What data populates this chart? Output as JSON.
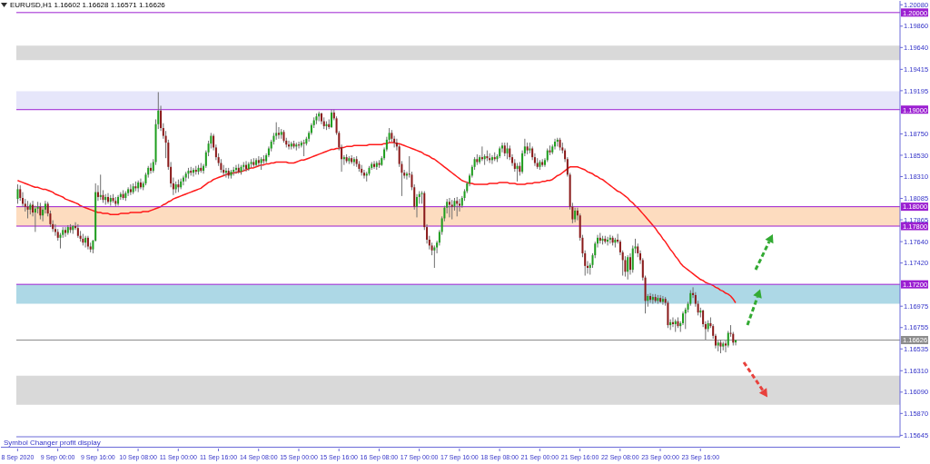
{
  "chart_data": {
    "type": "candlestick",
    "title": "EURUSD,H1 1.16602 1.16628 1.16571 1.16626",
    "annotations": [
      "Symbol Changer profit display"
    ],
    "categories": [
      "8 Sep 2020",
      null,
      null,
      null,
      null,
      null,
      null,
      null,
      null,
      null,
      null,
      null,
      null,
      null,
      null,
      null,
      "9 Sep 00:00",
      null,
      null,
      null,
      null,
      null,
      null,
      null,
      null,
      null,
      null,
      null,
      null,
      null,
      null,
      null,
      "9 Sep 16:00",
      null,
      null,
      null,
      null,
      null,
      null,
      null,
      null,
      null,
      null,
      null,
      null,
      null,
      null,
      null,
      "10 Sep 08:00",
      null,
      null,
      null,
      null,
      null,
      null,
      null,
      null,
      null,
      null,
      null,
      null,
      null,
      null,
      null,
      "11 Sep 00:00",
      null,
      null,
      null,
      null,
      null,
      null,
      null,
      null,
      null,
      null,
      null,
      null,
      null,
      null,
      null,
      "11 Sep 16:00",
      null,
      null,
      null,
      null,
      null,
      null,
      null,
      null,
      null,
      null,
      null,
      null,
      null,
      null,
      null,
      "14 Sep 08:00",
      null,
      null,
      null,
      null,
      null,
      null,
      null,
      null,
      null,
      null,
      null,
      null,
      null,
      null,
      null,
      "15 Sep 00:00",
      null,
      null,
      null,
      null,
      null,
      null,
      null,
      null,
      null,
      null,
      null,
      null,
      null,
      null,
      null,
      "15 Sep 16:00",
      null,
      null,
      null,
      null,
      null,
      null,
      null,
      null,
      null,
      null,
      null,
      null,
      null,
      null,
      null,
      "16 Sep 08:00",
      null,
      null,
      null,
      null,
      null,
      null,
      null,
      null,
      null,
      null,
      null,
      null,
      null,
      null,
      null,
      "17 Sep 00:00",
      null,
      null,
      null,
      null,
      null,
      null,
      null,
      null,
      null,
      null,
      null,
      null,
      null,
      null,
      null,
      "17 Sep 16:00",
      null,
      null,
      null,
      null,
      null,
      null,
      null,
      null,
      null,
      null,
      null,
      null,
      null,
      null,
      null,
      "18 Sep 08:00",
      null,
      null,
      null,
      null,
      null,
      null,
      null,
      null,
      null,
      null,
      null,
      null,
      null,
      null,
      null,
      "21 Sep 00:00",
      null,
      null,
      null,
      null,
      null,
      null,
      null,
      null,
      null,
      null,
      null,
      null,
      null,
      null,
      null,
      "21 Sep 16:00",
      null,
      null,
      null,
      null,
      null,
      null,
      null,
      null,
      null,
      null,
      null,
      null,
      null,
      null,
      null,
      "22 Sep 08:00",
      null,
      null,
      null,
      null,
      null,
      null,
      null,
      null,
      null,
      null,
      null,
      null,
      null,
      null,
      null,
      "23 Sep 00:00",
      null,
      null,
      null,
      null,
      null,
      null,
      null,
      null,
      null,
      null,
      null,
      null,
      null,
      null,
      null,
      "23 Sep 16:00",
      null,
      null,
      null,
      null,
      null,
      null,
      null,
      null,
      null,
      null,
      null,
      null,
      null,
      null,
      null,
      null,
      null,
      null,
      null,
      null,
      null,
      null,
      null,
      null,
      null,
      null,
      null,
      null,
      null,
      null,
      null,
      null,
      null,
      null,
      null,
      null,
      null,
      null,
      null,
      null,
      null,
      null,
      null,
      null,
      null,
      null,
      null,
      null,
      null,
      null,
      null,
      null,
      null,
      null,
      null,
      null,
      null,
      null,
      null,
      null,
      null,
      null,
      null,
      null,
      null,
      null,
      null,
      null,
      null,
      null,
      null,
      null,
      null,
      null,
      null,
      null,
      null,
      null,
      null
    ],
    "ohlc": [
      [
        1.1808,
        1.1823,
        1.1803,
        1.1818
      ],
      [
        1.1818,
        1.1822,
        1.1806,
        1.1809
      ],
      [
        1.1809,
        1.1815,
        1.18,
        1.1803
      ],
      [
        1.1803,
        1.1808,
        1.1795,
        1.18
      ],
      [
        1.18,
        1.1806,
        1.1788,
        1.1797
      ],
      [
        1.1797,
        1.1804,
        1.1792,
        1.1802
      ],
      [
        1.1802,
        1.1806,
        1.179,
        1.1794
      ],
      [
        1.1794,
        1.1801,
        1.1774,
        1.1798
      ],
      [
        1.1798,
        1.1805,
        1.1793,
        1.18
      ],
      [
        1.18,
        1.1804,
        1.1787,
        1.1791
      ],
      [
        1.1791,
        1.18,
        1.1785,
        1.1797
      ],
      [
        1.1797,
        1.1806,
        1.1793,
        1.1803
      ],
      [
        1.1803,
        1.1805,
        1.179,
        1.1793
      ],
      [
        1.1793,
        1.1796,
        1.1779,
        1.1782
      ],
      [
        1.1782,
        1.1786,
        1.1774,
        1.1777
      ],
      [
        1.1777,
        1.1782,
        1.177,
        1.1774
      ],
      [
        1.1774,
        1.1777,
        1.1765,
        1.1768
      ],
      [
        1.1768,
        1.1773,
        1.1757,
        1.1771
      ],
      [
        1.1771,
        1.1779,
        1.1768,
        1.1776
      ],
      [
        1.1776,
        1.1779,
        1.1769,
        1.1773
      ],
      [
        1.1773,
        1.1781,
        1.1771,
        1.1779
      ],
      [
        1.1779,
        1.1782,
        1.1773,
        1.1776
      ],
      [
        1.1776,
        1.1781,
        1.1772,
        1.178
      ],
      [
        1.178,
        1.1784,
        1.1776,
        1.1778
      ],
      [
        1.1778,
        1.1782,
        1.1768,
        1.177
      ],
      [
        1.177,
        1.1775,
        1.1764,
        1.1767
      ],
      [
        1.1767,
        1.1772,
        1.176,
        1.1763
      ],
      [
        1.1763,
        1.177,
        1.1758,
        1.1768
      ],
      [
        1.1768,
        1.177,
        1.1756,
        1.1759
      ],
      [
        1.1759,
        1.1763,
        1.1753,
        1.1756
      ],
      [
        1.1756,
        1.1766,
        1.1752,
        1.1765
      ],
      [
        1.1765,
        1.1824,
        1.1764,
        1.1815
      ],
      [
        1.1815,
        1.1822,
        1.1806,
        1.181
      ],
      [
        1.181,
        1.1833,
        1.1807,
        1.1812
      ],
      [
        1.1812,
        1.1817,
        1.1804,
        1.1807
      ],
      [
        1.1807,
        1.1813,
        1.1802,
        1.181
      ],
      [
        1.181,
        1.1814,
        1.1803,
        1.1805
      ],
      [
        1.1805,
        1.1812,
        1.1801,
        1.1809
      ],
      [
        1.1809,
        1.1813,
        1.1804,
        1.1806
      ],
      [
        1.1806,
        1.181,
        1.18,
        1.1803
      ],
      [
        1.1803,
        1.1812,
        1.1801,
        1.181
      ],
      [
        1.181,
        1.1815,
        1.1807,
        1.1813
      ],
      [
        1.1813,
        1.1817,
        1.1807,
        1.1809
      ],
      [
        1.1809,
        1.1816,
        1.1806,
        1.1814
      ],
      [
        1.1814,
        1.182,
        1.1811,
        1.1818
      ],
      [
        1.1818,
        1.1823,
        1.1812,
        1.1815
      ],
      [
        1.1815,
        1.1824,
        1.1813,
        1.1821
      ],
      [
        1.1821,
        1.1826,
        1.1816,
        1.1819
      ],
      [
        1.1819,
        1.1827,
        1.1815,
        1.1825
      ],
      [
        1.1825,
        1.1829,
        1.1818,
        1.182
      ],
      [
        1.182,
        1.1826,
        1.1817,
        1.1824
      ],
      [
        1.1824,
        1.1835,
        1.1822,
        1.1833
      ],
      [
        1.1833,
        1.1842,
        1.183,
        1.184
      ],
      [
        1.184,
        1.1845,
        1.1834,
        1.1837
      ],
      [
        1.1837,
        1.1849,
        1.1835,
        1.1846
      ],
      [
        1.1846,
        1.189,
        1.1843,
        1.1885
      ],
      [
        1.1885,
        1.1918,
        1.188,
        1.1899
      ],
      [
        1.1899,
        1.1904,
        1.1878,
        1.1881
      ],
      [
        1.1881,
        1.1886,
        1.187,
        1.1873
      ],
      [
        1.1873,
        1.1878,
        1.185,
        1.1866
      ],
      [
        1.1866,
        1.1869,
        1.1838,
        1.1841
      ],
      [
        1.1841,
        1.1846,
        1.182,
        1.1824
      ],
      [
        1.1824,
        1.183,
        1.1812,
        1.1818
      ],
      [
        1.1818,
        1.1826,
        1.1814,
        1.1823
      ],
      [
        1.1823,
        1.1828,
        1.1815,
        1.182
      ],
      [
        1.182,
        1.1829,
        1.1818,
        1.1826
      ],
      [
        1.1826,
        1.1832,
        1.1822,
        1.183
      ],
      [
        1.183,
        1.1836,
        1.1826,
        1.1834
      ],
      [
        1.1834,
        1.184,
        1.1829,
        1.1837
      ],
      [
        1.1837,
        1.1841,
        1.1832,
        1.1835
      ],
      [
        1.1835,
        1.184,
        1.1831,
        1.1838
      ],
      [
        1.1838,
        1.1842,
        1.1833,
        1.1836
      ],
      [
        1.1836,
        1.1843,
        1.1833,
        1.184
      ],
      [
        1.184,
        1.1845,
        1.1835,
        1.1837
      ],
      [
        1.1837,
        1.1844,
        1.1834,
        1.1842
      ],
      [
        1.1842,
        1.1858,
        1.184,
        1.1856
      ],
      [
        1.1856,
        1.1868,
        1.1852,
        1.1865
      ],
      [
        1.1865,
        1.1876,
        1.186,
        1.1873
      ],
      [
        1.1873,
        1.1875,
        1.1858,
        1.1861
      ],
      [
        1.1861,
        1.1864,
        1.1848,
        1.1851
      ],
      [
        1.1851,
        1.1855,
        1.1842,
        1.1845
      ],
      [
        1.1845,
        1.1849,
        1.1835,
        1.1838
      ],
      [
        1.1838,
        1.1843,
        1.1832,
        1.1835
      ],
      [
        1.1835,
        1.184,
        1.183,
        1.1837
      ],
      [
        1.1837,
        1.184,
        1.1829,
        1.1832
      ],
      [
        1.1832,
        1.1838,
        1.1829,
        1.1836
      ],
      [
        1.1836,
        1.1841,
        1.1832,
        1.1838
      ],
      [
        1.1838,
        1.1843,
        1.1834,
        1.184
      ],
      [
        1.184,
        1.1844,
        1.1834,
        1.1836
      ],
      [
        1.1836,
        1.1843,
        1.1833,
        1.1841
      ],
      [
        1.1841,
        1.1846,
        1.1837,
        1.1843
      ],
      [
        1.1843,
        1.1847,
        1.1836,
        1.1839
      ],
      [
        1.1839,
        1.1846,
        1.1837,
        1.1844
      ],
      [
        1.1844,
        1.1849,
        1.184,
        1.1846
      ],
      [
        1.1846,
        1.185,
        1.1841,
        1.1843
      ],
      [
        1.1843,
        1.185,
        1.1841,
        1.1848
      ],
      [
        1.1848,
        1.1852,
        1.1842,
        1.1845
      ],
      [
        1.1845,
        1.1851,
        1.1838,
        1.1849
      ],
      [
        1.1849,
        1.1853,
        1.1844,
        1.1847
      ],
      [
        1.1847,
        1.1855,
        1.1845,
        1.1853
      ],
      [
        1.1853,
        1.1862,
        1.1851,
        1.186
      ],
      [
        1.186,
        1.1869,
        1.1857,
        1.1867
      ],
      [
        1.1867,
        1.1876,
        1.1864,
        1.1873
      ],
      [
        1.1873,
        1.1887,
        1.1869,
        1.1876
      ],
      [
        1.1876,
        1.1882,
        1.187,
        1.1874
      ],
      [
        1.1874,
        1.188,
        1.187,
        1.1877
      ],
      [
        1.1877,
        1.1879,
        1.1866,
        1.1868
      ],
      [
        1.1868,
        1.1871,
        1.1861,
        1.1864
      ],
      [
        1.1864,
        1.1868,
        1.1859,
        1.1862
      ],
      [
        1.1862,
        1.1867,
        1.1859,
        1.1865
      ],
      [
        1.1865,
        1.1868,
        1.186,
        1.1862
      ],
      [
        1.1862,
        1.1866,
        1.1858,
        1.1864
      ],
      [
        1.1864,
        1.1867,
        1.186,
        1.1863
      ],
      [
        1.1863,
        1.1868,
        1.1861,
        1.1866
      ],
      [
        1.1866,
        1.1869,
        1.1852,
        1.1865
      ],
      [
        1.1865,
        1.1872,
        1.1863,
        1.187
      ],
      [
        1.187,
        1.1878,
        1.1867,
        1.1876
      ],
      [
        1.1876,
        1.1886,
        1.1874,
        1.1884
      ],
      [
        1.1884,
        1.1892,
        1.1881,
        1.1889
      ],
      [
        1.1889,
        1.1896,
        1.1885,
        1.1893
      ],
      [
        1.1893,
        1.1898,
        1.1888,
        1.1896
      ],
      [
        1.1896,
        1.1897,
        1.1885,
        1.1888
      ],
      [
        1.1888,
        1.1892,
        1.188,
        1.1883
      ],
      [
        1.1883,
        1.1888,
        1.1879,
        1.1885
      ],
      [
        1.1885,
        1.189,
        1.188,
        1.1882
      ],
      [
        1.1882,
        1.19,
        1.1881,
        1.1897
      ],
      [
        1.1897,
        1.19,
        1.1889,
        1.1891
      ],
      [
        1.1891,
        1.1893,
        1.1874,
        1.1876
      ],
      [
        1.1876,
        1.1878,
        1.1858,
        1.1861
      ],
      [
        1.1861,
        1.1864,
        1.1836,
        1.1849
      ],
      [
        1.1849,
        1.1853,
        1.1843,
        1.1851
      ],
      [
        1.1851,
        1.1854,
        1.1845,
        1.1847
      ],
      [
        1.1847,
        1.1852,
        1.1844,
        1.185
      ],
      [
        1.185,
        1.1853,
        1.1844,
        1.1846
      ],
      [
        1.1846,
        1.1851,
        1.1842,
        1.1849
      ],
      [
        1.1849,
        1.1852,
        1.1841,
        1.1844
      ],
      [
        1.1844,
        1.1847,
        1.1836,
        1.1839
      ],
      [
        1.1839,
        1.1843,
        1.1832,
        1.1835
      ],
      [
        1.1835,
        1.1838,
        1.1829,
        1.1832
      ],
      [
        1.1832,
        1.1836,
        1.1826,
        1.1834
      ],
      [
        1.1834,
        1.1842,
        1.1832,
        1.184
      ],
      [
        1.184,
        1.1846,
        1.1838,
        1.1844
      ],
      [
        1.1844,
        1.1847,
        1.1839,
        1.1841
      ],
      [
        1.1841,
        1.1847,
        1.1838,
        1.1845
      ],
      [
        1.1845,
        1.1848,
        1.184,
        1.1843
      ],
      [
        1.1843,
        1.1852,
        1.1842,
        1.185
      ],
      [
        1.185,
        1.1861,
        1.1848,
        1.1859
      ],
      [
        1.1859,
        1.1872,
        1.1857,
        1.1869
      ],
      [
        1.1869,
        1.1881,
        1.1866,
        1.1876
      ],
      [
        1.1876,
        1.1879,
        1.1867,
        1.187
      ],
      [
        1.187,
        1.1873,
        1.1861,
        1.1866
      ],
      [
        1.1866,
        1.187,
        1.1858,
        1.1862
      ],
      [
        1.1862,
        1.1864,
        1.1841,
        1.1844
      ],
      [
        1.1844,
        1.1847,
        1.1811,
        1.1835
      ],
      [
        1.1835,
        1.1838,
        1.1829,
        1.1832
      ],
      [
        1.1832,
        1.1836,
        1.1828,
        1.1834
      ],
      [
        1.1834,
        1.1852,
        1.183,
        1.1833
      ],
      [
        1.1833,
        1.1836,
        1.1817,
        1.182
      ],
      [
        1.182,
        1.1823,
        1.1797,
        1.18
      ],
      [
        1.18,
        1.1813,
        1.1789,
        1.181
      ],
      [
        1.181,
        1.1816,
        1.1803,
        1.1813
      ],
      [
        1.1813,
        1.1816,
        1.1803,
        1.1814
      ],
      [
        1.1814,
        1.1816,
        1.1776,
        1.1779
      ],
      [
        1.1779,
        1.1782,
        1.1762,
        1.1766
      ],
      [
        1.1766,
        1.177,
        1.1756,
        1.176
      ],
      [
        1.176,
        1.1763,
        1.175,
        1.1755
      ],
      [
        1.1755,
        1.176,
        1.1737,
        1.1758
      ],
      [
        1.1758,
        1.1765,
        1.1752,
        1.1763
      ],
      [
        1.1763,
        1.1776,
        1.176,
        1.1774
      ],
      [
        1.1774,
        1.179,
        1.1771,
        1.1788
      ],
      [
        1.1788,
        1.1801,
        1.1785,
        1.1799
      ],
      [
        1.1799,
        1.1808,
        1.1793,
        1.1805
      ],
      [
        1.1805,
        1.1809,
        1.1789,
        1.1802
      ],
      [
        1.1802,
        1.1807,
        1.1787,
        1.18
      ],
      [
        1.18,
        1.1809,
        1.1796,
        1.1806
      ],
      [
        1.1806,
        1.181,
        1.179,
        1.1803
      ],
      [
        1.1803,
        1.1808,
        1.1795,
        1.1801
      ],
      [
        1.1801,
        1.1811,
        1.1799,
        1.1809
      ],
      [
        1.1809,
        1.1818,
        1.1806,
        1.1816
      ],
      [
        1.1816,
        1.1826,
        1.1814,
        1.1824
      ],
      [
        1.1824,
        1.1834,
        1.1821,
        1.1832
      ],
      [
        1.1832,
        1.1843,
        1.183,
        1.1841
      ],
      [
        1.1841,
        1.1851,
        1.1838,
        1.1849
      ],
      [
        1.1849,
        1.1854,
        1.1843,
        1.1846
      ],
      [
        1.1846,
        1.1853,
        1.1844,
        1.1851
      ],
      [
        1.1851,
        1.1862,
        1.1847,
        1.1849
      ],
      [
        1.1849,
        1.1854,
        1.1843,
        1.1852
      ],
      [
        1.1852,
        1.1858,
        1.1847,
        1.185
      ],
      [
        1.185,
        1.1855,
        1.1845,
        1.1848
      ],
      [
        1.1848,
        1.1853,
        1.1844,
        1.1851
      ],
      [
        1.1851,
        1.1856,
        1.1847,
        1.1849
      ],
      [
        1.1849,
        1.1854,
        1.1846,
        1.1852
      ],
      [
        1.1852,
        1.1862,
        1.185,
        1.186
      ],
      [
        1.186,
        1.1866,
        1.1856,
        1.1863
      ],
      [
        1.1863,
        1.1866,
        1.1852,
        1.1855
      ],
      [
        1.1855,
        1.1866,
        1.1849,
        1.186
      ],
      [
        1.186,
        1.1863,
        1.1848,
        1.1851
      ],
      [
        1.1851,
        1.1854,
        1.1842,
        1.1845
      ],
      [
        1.1845,
        1.1849,
        1.1836,
        1.1839
      ],
      [
        1.1839,
        1.1845,
        1.1826,
        1.1842
      ],
      [
        1.1842,
        1.1846,
        1.1832,
        1.1836
      ],
      [
        1.1836,
        1.1858,
        1.1834,
        1.1855
      ],
      [
        1.1855,
        1.187,
        1.1852,
        1.1862
      ],
      [
        1.1862,
        1.1866,
        1.1854,
        1.1858
      ],
      [
        1.1858,
        1.1866,
        1.1855,
        1.186
      ],
      [
        1.186,
        1.1862,
        1.1848,
        1.1851
      ],
      [
        1.1851,
        1.1855,
        1.1842,
        1.1845
      ],
      [
        1.1845,
        1.185,
        1.1839,
        1.1841
      ],
      [
        1.1841,
        1.1848,
        1.1838,
        1.1846
      ],
      [
        1.1846,
        1.1849,
        1.1841,
        1.1843
      ],
      [
        1.1843,
        1.185,
        1.1841,
        1.1848
      ],
      [
        1.1848,
        1.186,
        1.1846,
        1.1858
      ],
      [
        1.1858,
        1.1863,
        1.1853,
        1.1856
      ],
      [
        1.1856,
        1.1864,
        1.1854,
        1.1862
      ],
      [
        1.1862,
        1.187,
        1.1859,
        1.1867
      ],
      [
        1.1867,
        1.1871,
        1.1862,
        1.1869
      ],
      [
        1.1869,
        1.1871,
        1.1858,
        1.1861
      ],
      [
        1.1861,
        1.1866,
        1.1855,
        1.1858
      ],
      [
        1.1858,
        1.186,
        1.1846,
        1.1849
      ],
      [
        1.1849,
        1.1851,
        1.1831,
        1.1833
      ],
      [
        1.1833,
        1.1835,
        1.1797,
        1.18
      ],
      [
        1.18,
        1.1804,
        1.1783,
        1.1787
      ],
      [
        1.1787,
        1.1799,
        1.1784,
        1.1796
      ],
      [
        1.1796,
        1.1799,
        1.1786,
        1.1791
      ],
      [
        1.1791,
        1.1793,
        1.1765,
        1.1768
      ],
      [
        1.1768,
        1.1771,
        1.1748,
        1.1752
      ],
      [
        1.1752,
        1.1755,
        1.1729,
        1.1739
      ],
      [
        1.1739,
        1.1744,
        1.1731,
        1.1737
      ],
      [
        1.1737,
        1.1742,
        1.173,
        1.174
      ],
      [
        1.174,
        1.1752,
        1.1737,
        1.175
      ],
      [
        1.175,
        1.1764,
        1.1747,
        1.1762
      ],
      [
        1.1762,
        1.1771,
        1.1758,
        1.1768
      ],
      [
        1.1768,
        1.1773,
        1.1762,
        1.1765
      ],
      [
        1.1765,
        1.177,
        1.1761,
        1.1767
      ],
      [
        1.1767,
        1.177,
        1.1762,
        1.1764
      ],
      [
        1.1764,
        1.1769,
        1.176,
        1.1766
      ],
      [
        1.1766,
        1.1771,
        1.1762,
        1.1768
      ],
      [
        1.1768,
        1.177,
        1.176,
        1.1763
      ],
      [
        1.1763,
        1.1768,
        1.1758,
        1.1766
      ],
      [
        1.1766,
        1.1772,
        1.1762,
        1.1764
      ],
      [
        1.1764,
        1.1766,
        1.175,
        1.1753
      ],
      [
        1.1753,
        1.1755,
        1.1729,
        1.1745
      ],
      [
        1.1745,
        1.1749,
        1.1728,
        1.1733
      ],
      [
        1.1733,
        1.175,
        1.1725,
        1.1748
      ],
      [
        1.1748,
        1.1752,
        1.173,
        1.1735
      ],
      [
        1.1735,
        1.176,
        1.1732,
        1.1757
      ],
      [
        1.1757,
        1.1767,
        1.1752,
        1.1759
      ],
      [
        1.1759,
        1.1762,
        1.1748,
        1.1752
      ],
      [
        1.1752,
        1.1755,
        1.1741,
        1.1745
      ],
      [
        1.1745,
        1.1747,
        1.1724,
        1.1727
      ],
      [
        1.1727,
        1.1729,
        1.169,
        1.1703
      ],
      [
        1.1703,
        1.171,
        1.1697,
        1.1708
      ],
      [
        1.1708,
        1.1711,
        1.1701,
        1.1704
      ],
      [
        1.1704,
        1.171,
        1.17,
        1.1707
      ],
      [
        1.1707,
        1.171,
        1.1701,
        1.1703
      ],
      [
        1.1703,
        1.1709,
        1.17,
        1.1706
      ],
      [
        1.1706,
        1.1709,
        1.1701,
        1.1702
      ],
      [
        1.1702,
        1.1708,
        1.1699,
        1.1705
      ],
      [
        1.1705,
        1.1707,
        1.1698,
        1.1701
      ],
      [
        1.1701,
        1.1703,
        1.1675,
        1.1678
      ],
      [
        1.1678,
        1.1684,
        1.1673,
        1.1681
      ],
      [
        1.1681,
        1.1686,
        1.1676,
        1.1679
      ],
      [
        1.1679,
        1.1684,
        1.1671,
        1.1682
      ],
      [
        1.1682,
        1.1686,
        1.1675,
        1.1677
      ],
      [
        1.1677,
        1.1682,
        1.1671,
        1.168
      ],
      [
        1.168,
        1.1692,
        1.1678,
        1.169
      ],
      [
        1.169,
        1.1696,
        1.1674,
        1.1694
      ],
      [
        1.1694,
        1.1702,
        1.1691,
        1.17
      ],
      [
        1.17,
        1.1714,
        1.1698,
        1.1711
      ],
      [
        1.1711,
        1.1717,
        1.1706,
        1.1709
      ],
      [
        1.1709,
        1.1712,
        1.1697,
        1.17
      ],
      [
        1.17,
        1.1703,
        1.1688,
        1.1691
      ],
      [
        1.1691,
        1.1696,
        1.1686,
        1.1693
      ],
      [
        1.1693,
        1.1694,
        1.1676,
        1.1679
      ],
      [
        1.1679,
        1.1682,
        1.1663,
        1.1674
      ],
      [
        1.1674,
        1.1683,
        1.1671,
        1.168
      ],
      [
        1.168,
        1.1686,
        1.1675,
        1.1677
      ],
      [
        1.1677,
        1.1679,
        1.1664,
        1.1667
      ],
      [
        1.1667,
        1.1669,
        1.1654,
        1.1657
      ],
      [
        1.1657,
        1.1662,
        1.1651,
        1.166
      ],
      [
        1.166,
        1.1663,
        1.1649,
        1.1656
      ],
      [
        1.1656,
        1.1661,
        1.1652,
        1.1659
      ],
      [
        1.1659,
        1.1662,
        1.165,
        1.1657
      ],
      [
        1.1657,
        1.1672,
        1.1655,
        1.167
      ],
      [
        1.167,
        1.1678,
        1.1666,
        1.1669
      ],
      [
        1.1669,
        1.1671,
        1.1657,
        1.166
      ],
      [
        1.16602,
        1.16628,
        1.16571,
        1.16626
      ],
      null,
      null,
      null,
      null,
      null,
      null,
      null,
      null,
      null,
      null,
      null,
      null,
      null,
      null,
      null,
      null,
      null,
      null,
      null,
      null,
      null,
      null,
      null,
      null,
      null,
      null,
      null,
      null,
      null,
      null,
      null,
      null,
      null,
      null,
      null,
      null,
      null,
      null,
      null,
      null,
      null,
      null,
      null,
      null,
      null,
      null,
      null,
      null,
      null,
      null,
      null,
      null,
      null,
      null,
      null,
      null,
      null,
      null,
      null,
      null,
      null,
      null,
      null,
      null,
      null
    ],
    "series": [
      {
        "type": "line",
        "color": "#ff1a1a",
        "values": [
          1.1827,
          1.1826,
          1.1825,
          1.1824,
          1.1823,
          1.1822,
          1.1821,
          1.182,
          1.182,
          1.1819,
          1.1818,
          1.1818,
          1.1817,
          1.1816,
          1.1815,
          1.1813,
          1.1812,
          1.1811,
          1.181,
          1.1808,
          1.1807,
          1.1806,
          1.1805,
          1.1804,
          1.1803,
          1.1801,
          1.18,
          1.1799,
          1.1798,
          1.1797,
          1.1796,
          1.1795,
          1.1794,
          1.1794,
          1.1793,
          1.1793,
          1.1793,
          1.1792,
          1.1792,
          1.1792,
          1.1792,
          1.1793,
          1.1793,
          1.1793,
          1.1793,
          1.1794,
          1.1794,
          1.1794,
          1.1794,
          1.1794,
          1.1795,
          1.1795,
          1.1795,
          1.1796,
          1.1797,
          1.1798,
          1.1799,
          1.18,
          1.1802,
          1.1803,
          1.1805,
          1.1806,
          1.1808,
          1.1809,
          1.181,
          1.1811,
          1.1812,
          1.1813,
          1.1814,
          1.1815,
          1.1816,
          1.1817,
          1.1818,
          1.1819,
          1.1821,
          1.1823,
          1.1825,
          1.1826,
          1.1828,
          1.1829,
          1.183,
          1.1831,
          1.1832,
          1.1833,
          1.1834,
          1.1834,
          1.1835,
          1.1835,
          1.1836,
          1.1836,
          1.1837,
          1.1838,
          1.1839,
          1.184,
          1.184,
          1.1841,
          1.1842,
          1.1843,
          1.1843,
          1.1844,
          1.1844,
          1.1845,
          1.1845,
          1.1846,
          1.1846,
          1.1846,
          1.1846,
          1.1846,
          1.1845,
          1.1845,
          1.1845,
          1.1846,
          1.1847,
          1.1848,
          1.1848,
          1.1849,
          1.185,
          1.1851,
          1.1852,
          1.1853,
          1.1854,
          1.1855,
          1.1856,
          1.1857,
          1.1858,
          1.1859,
          1.1859,
          1.186,
          1.186,
          1.1861,
          1.1861,
          1.1862,
          1.1862,
          1.1862,
          1.1863,
          1.1863,
          1.1863,
          1.1863,
          1.1863,
          1.1863,
          1.1864,
          1.1864,
          1.1864,
          1.1864,
          1.1864,
          1.1864,
          1.1865,
          1.1865,
          1.1866,
          1.1866,
          1.1866,
          1.1865,
          1.1865,
          1.1864,
          1.1863,
          1.1862,
          1.1861,
          1.186,
          1.1859,
          1.1858,
          1.1857,
          1.1856,
          1.1854,
          1.1853,
          1.1852,
          1.185,
          1.1849,
          1.1847,
          1.1845,
          1.1843,
          1.1841,
          1.1839,
          1.1837,
          1.1835,
          1.1833,
          1.1831,
          1.1829,
          1.1827,
          1.1826,
          1.1825,
          1.1824,
          1.1824,
          1.1823,
          1.1823,
          1.1823,
          1.1823,
          1.1823,
          1.1823,
          1.1824,
          1.1824,
          1.1824,
          1.1824,
          1.1825,
          1.1825,
          1.1825,
          1.1825,
          1.1824,
          1.1824,
          1.1824,
          1.1823,
          1.1823,
          1.1823,
          1.1823,
          1.1824,
          1.1824,
          1.1824,
          1.1825,
          1.1825,
          1.1825,
          1.1826,
          1.1826,
          1.1827,
          1.1827,
          1.1828,
          1.183,
          1.1832,
          1.1833,
          1.1835,
          1.1837,
          1.1839,
          1.1841,
          1.1841,
          1.1841,
          1.1841,
          1.184,
          1.1839,
          1.1838,
          1.1836,
          1.1835,
          1.1834,
          1.1832,
          1.1831,
          1.1829,
          1.1828,
          1.1826,
          1.1824,
          1.1822,
          1.182,
          1.1818,
          1.1816,
          1.1815,
          1.1813,
          1.1811,
          1.1809,
          1.1806,
          1.1804,
          1.1801,
          1.1799,
          1.1796,
          1.1793,
          1.179,
          1.1787,
          1.1784,
          1.1781,
          1.1778,
          1.1774,
          1.1771,
          1.1767,
          1.1764,
          1.176,
          1.1756,
          1.1753,
          1.1749,
          1.1746,
          1.1742,
          1.1739,
          1.1737,
          1.1735,
          1.1733,
          1.1731,
          1.1729,
          1.1727,
          1.1725,
          1.1724,
          1.1722,
          1.1721,
          1.172,
          1.1719,
          1.1717,
          1.1716,
          1.1714,
          1.1713,
          1.1711,
          1.171,
          1.1708,
          1.1705,
          1.1701,
          null,
          null,
          null,
          null,
          null,
          null,
          null,
          null,
          null,
          null,
          null,
          null,
          null,
          null,
          null,
          null,
          null,
          null,
          null,
          null,
          null,
          null,
          null,
          null,
          null,
          null,
          null,
          null,
          null,
          null,
          null,
          null,
          null,
          null,
          null,
          null,
          null,
          null,
          null,
          null,
          null,
          null,
          null,
          null,
          null,
          null,
          null,
          null,
          null,
          null,
          null,
          null,
          null,
          null,
          null,
          null,
          null,
          null,
          null,
          null,
          null,
          null,
          null,
          null,
          null
        ]
      }
    ],
    "ylim": [
      1.1563,
      1.2012
    ],
    "yticks": [
      1.15645,
      {
        "value": 1.1587,
        "label": "1.15870"
      },
      {
        "value": 1.1609,
        "label": "1.16090"
      },
      {
        "value": 1.1631,
        "label": "1.16310"
      },
      1.16535,
      1.16755,
      1.16975,
      {
        "value": 1.1742,
        "label": "1.17420"
      },
      {
        "value": 1.1764,
        "label": "1.17640"
      },
      1.17865,
      1.18085,
      {
        "value": 1.1831,
        "label": "1.18310"
      },
      {
        "value": 1.1853,
        "label": "1.18530"
      },
      {
        "value": 1.1875,
        "label": "1.18750"
      },
      1.19195,
      1.19415,
      {
        "value": 1.1964,
        "label": "1.19640"
      },
      {
        "value": 1.1986,
        "label": "1.19860"
      },
      {
        "value": 1.2008,
        "label": "1.20080"
      }
    ],
    "ref_lines": [
      {
        "axis": "y",
        "value": 1.2,
        "label": "1.20000",
        "color": "#9b1fd1"
      },
      {
        "axis": "y",
        "value": 1.19,
        "label": "1.19000",
        "color": "#9b1fd1"
      },
      {
        "axis": "y",
        "value": 1.18,
        "label": "1.18000",
        "color": "#9b1fd1"
      },
      {
        "axis": "y",
        "value": 1.178,
        "label": "1.17800",
        "color": "#9b1fd1"
      },
      {
        "axis": "y",
        "value": 1.172,
        "label": "1.17200",
        "color": "#9b1fd1"
      },
      {
        "axis": "y",
        "value": 1.16626,
        "label": "1.16626",
        "color": "#8c8c8c"
      }
    ],
    "bands": [
      {
        "axis": "y",
        "from": 1.1951,
        "to": 1.1966,
        "color": "#d9d9d9"
      },
      {
        "axis": "y",
        "from": 1.19,
        "to": 1.1919,
        "color": "#e6e6fa"
      },
      {
        "axis": "y",
        "from": 1.178,
        "to": 1.18,
        "color": "#fddcbf"
      },
      {
        "axis": "y",
        "from": 1.17,
        "to": 1.172,
        "color": "#add8e6"
      },
      {
        "axis": "y",
        "from": 1.1596,
        "to": 1.1626,
        "color": "#d9d9d9"
      }
    ]
  }
}
